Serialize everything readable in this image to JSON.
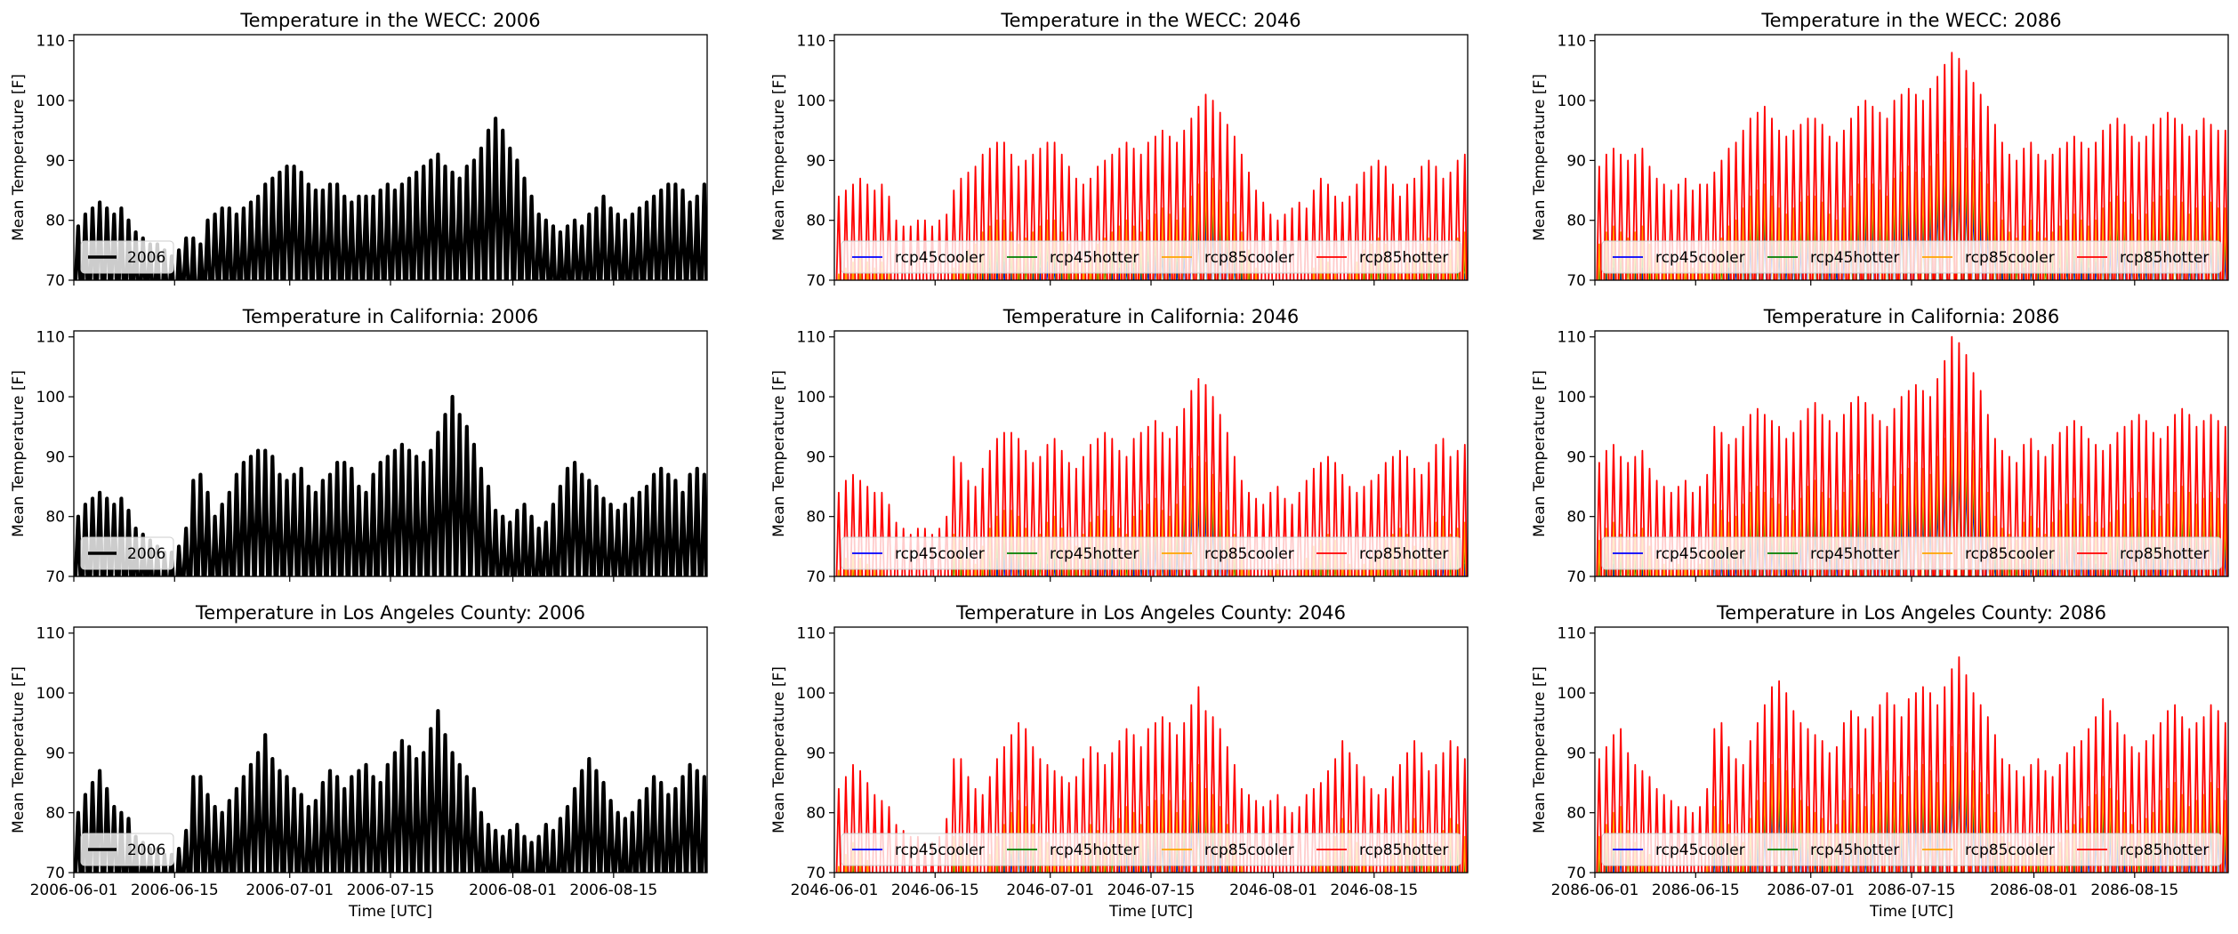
{
  "figure": {
    "ylabel": "Mean Temperature [F]",
    "xlabel": "Time [UTC]",
    "y_ticks": [
      70,
      80,
      90,
      100,
      110
    ],
    "x_ticks": [
      "06-01",
      "06-15",
      "07-01",
      "07-15",
      "08-01",
      "08-15"
    ],
    "legend_2006_label": "2006",
    "colors": {
      "2006": "#000000",
      "rcp45cooler": "#0000ff",
      "rcp45hotter": "#008000",
      "rcp85cooler": "#ffa500",
      "rcp85hotter": "#ff0000"
    }
  },
  "chart_data": [
    {
      "type": "line",
      "title": "Temperature in the WECC: 2006",
      "region": "WECC",
      "year": 2006,
      "ylabel": "Mean Temperature [F]",
      "xlabel": "",
      "ylim": [
        70,
        111
      ],
      "xlim": [
        "2006-06-01",
        "2006-08-28"
      ],
      "series": [
        {
          "name": "2006",
          "color": "#000000"
        }
      ],
      "daily_max": [
        79,
        81,
        82,
        83,
        82,
        81,
        82,
        80,
        78,
        77,
        76,
        76,
        75,
        74,
        75,
        77,
        77,
        76,
        80,
        81,
        82,
        82,
        81,
        82,
        83,
        84,
        86,
        87,
        88,
        89,
        89,
        88,
        86,
        85,
        85,
        86,
        86,
        84,
        83,
        84,
        84,
        84,
        85,
        86,
        85,
        86,
        87,
        88,
        89,
        90,
        91,
        89,
        88,
        87,
        89,
        90,
        92,
        95,
        97,
        95,
        92,
        90,
        87,
        84,
        81,
        80,
        79,
        78,
        79,
        80,
        79,
        81,
        82,
        84,
        82,
        81,
        80,
        81,
        82,
        83,
        84,
        85,
        86,
        86,
        85,
        83,
        84,
        86
      ],
      "legend_position": "lower left"
    },
    {
      "type": "line",
      "title": "Temperature in the WECC: 2046",
      "region": "WECC",
      "year": 2046,
      "ylabel": "Mean Temperature [F]",
      "xlabel": "",
      "ylim": [
        70,
        111
      ],
      "xlim": [
        "2046-06-01",
        "2046-08-28"
      ],
      "series": [
        {
          "name": "rcp45cooler",
          "color": "#0000ff"
        },
        {
          "name": "rcp45hotter",
          "color": "#008000"
        },
        {
          "name": "rcp85cooler",
          "color": "#ffa500"
        },
        {
          "name": "rcp85hotter",
          "color": "#ff0000"
        }
      ],
      "hotter_daily_max": [
        84,
        85,
        86,
        87,
        86,
        85,
        86,
        84,
        80,
        79,
        79,
        80,
        80,
        79,
        80,
        81,
        85,
        87,
        88,
        89,
        91,
        92,
        93,
        93,
        91,
        89,
        90,
        91,
        92,
        93,
        93,
        91,
        89,
        87,
        86,
        87,
        89,
        90,
        91,
        92,
        93,
        92,
        91,
        93,
        94,
        95,
        94,
        93,
        95,
        97,
        99,
        101,
        100,
        98,
        96,
        94,
        91,
        88,
        85,
        83,
        81,
        80,
        81,
        82,
        83,
        82,
        85,
        87,
        86,
        84,
        83,
        84,
        86,
        88,
        89,
        90,
        89,
        86,
        84,
        86,
        87,
        89,
        90,
        89,
        87,
        88,
        90,
        91
      ],
      "legend_position": "lower center"
    },
    {
      "type": "line",
      "title": "Temperature in the WECC: 2086",
      "region": "WECC",
      "year": 2086,
      "ylabel": "Mean Temperature [F]",
      "xlabel": "",
      "ylim": [
        70,
        111
      ],
      "xlim": [
        "2086-06-01",
        "2086-08-28"
      ],
      "series": [
        {
          "name": "rcp45cooler",
          "color": "#0000ff"
        },
        {
          "name": "rcp45hotter",
          "color": "#008000"
        },
        {
          "name": "rcp85cooler",
          "color": "#ffa500"
        },
        {
          "name": "rcp85hotter",
          "color": "#ff0000"
        }
      ],
      "hotter_daily_max": [
        89,
        91,
        92,
        91,
        90,
        91,
        92,
        89,
        87,
        86,
        85,
        86,
        87,
        85,
        86,
        86,
        88,
        90,
        92,
        93,
        95,
        97,
        98,
        99,
        97,
        95,
        94,
        95,
        96,
        97,
        97,
        96,
        94,
        93,
        95,
        97,
        99,
        100,
        99,
        98,
        97,
        100,
        101,
        102,
        101,
        100,
        102,
        104,
        106,
        108,
        107,
        105,
        103,
        101,
        99,
        96,
        93,
        91,
        90,
        92,
        93,
        91,
        90,
        91,
        92,
        93,
        94,
        93,
        92,
        93,
        95,
        96,
        97,
        96,
        94,
        93,
        94,
        96,
        97,
        98,
        97,
        96,
        94,
        95,
        97,
        96,
        95,
        95
      ],
      "legend_position": "lower center"
    },
    {
      "type": "line",
      "title": "Temperature in California: 2006",
      "region": "California",
      "year": 2006,
      "ylabel": "Mean Temperature [F]",
      "xlabel": "",
      "ylim": [
        70,
        111
      ],
      "xlim": [
        "2006-06-01",
        "2006-08-28"
      ],
      "series": [
        {
          "name": "2006",
          "color": "#000000"
        }
      ],
      "daily_max": [
        80,
        82,
        83,
        84,
        83,
        82,
        83,
        81,
        78,
        77,
        76,
        75,
        74,
        74,
        75,
        78,
        86,
        87,
        84,
        80,
        82,
        84,
        87,
        89,
        90,
        91,
        91,
        90,
        87,
        86,
        87,
        88,
        85,
        84,
        86,
        87,
        89,
        89,
        88,
        85,
        84,
        87,
        89,
        90,
        91,
        92,
        91,
        90,
        89,
        91,
        94,
        97,
        100,
        97,
        95,
        92,
        88,
        85,
        81,
        80,
        79,
        81,
        82,
        80,
        78,
        79,
        82,
        85,
        88,
        89,
        87,
        86,
        85,
        83,
        82,
        81,
        82,
        83,
        84,
        85,
        87,
        88,
        87,
        86,
        84,
        87,
        88,
        87
      ],
      "legend_position": "lower left"
    },
    {
      "type": "line",
      "title": "Temperature in California: 2046",
      "region": "California",
      "year": 2046,
      "ylabel": "Mean Temperature [F]",
      "xlabel": "",
      "ylim": [
        70,
        111
      ],
      "xlim": [
        "2046-06-01",
        "2046-08-28"
      ],
      "series": [
        {
          "name": "rcp45cooler",
          "color": "#0000ff"
        },
        {
          "name": "rcp45hotter",
          "color": "#008000"
        },
        {
          "name": "rcp85cooler",
          "color": "#ffa500"
        },
        {
          "name": "rcp85hotter",
          "color": "#ff0000"
        }
      ],
      "hotter_daily_max": [
        84,
        86,
        87,
        86,
        85,
        84,
        84,
        82,
        79,
        78,
        77,
        78,
        78,
        77,
        78,
        80,
        90,
        89,
        86,
        85,
        88,
        91,
        93,
        94,
        94,
        93,
        91,
        89,
        90,
        92,
        93,
        91,
        89,
        88,
        90,
        92,
        93,
        94,
        93,
        91,
        90,
        93,
        94,
        95,
        96,
        94,
        93,
        95,
        98,
        101,
        103,
        102,
        100,
        97,
        94,
        90,
        86,
        84,
        83,
        82,
        84,
        85,
        83,
        82,
        84,
        86,
        88,
        89,
        90,
        89,
        87,
        85,
        84,
        85,
        86,
        87,
        89,
        90,
        91,
        90,
        88,
        87,
        89,
        92,
        93,
        90,
        91,
        92
      ],
      "legend_position": "lower center"
    },
    {
      "type": "line",
      "title": "Temperature in California: 2086",
      "region": "California",
      "year": 2086,
      "ylabel": "Mean Temperature [F]",
      "xlabel": "",
      "ylim": [
        70,
        111
      ],
      "xlim": [
        "2086-06-01",
        "2086-08-28"
      ],
      "series": [
        {
          "name": "rcp45cooler",
          "color": "#0000ff"
        },
        {
          "name": "rcp45hotter",
          "color": "#008000"
        },
        {
          "name": "rcp85cooler",
          "color": "#ffa500"
        },
        {
          "name": "rcp85hotter",
          "color": "#ff0000"
        }
      ],
      "hotter_daily_max": [
        89,
        91,
        92,
        90,
        89,
        90,
        91,
        88,
        86,
        85,
        84,
        85,
        86,
        84,
        85,
        87,
        95,
        94,
        92,
        93,
        95,
        97,
        98,
        97,
        96,
        95,
        93,
        94,
        96,
        98,
        99,
        97,
        96,
        94,
        97,
        99,
        100,
        99,
        97,
        96,
        95,
        98,
        100,
        101,
        102,
        101,
        100,
        103,
        106,
        110,
        109,
        107,
        104,
        101,
        97,
        93,
        91,
        90,
        89,
        92,
        93,
        91,
        90,
        92,
        94,
        95,
        96,
        95,
        93,
        92,
        91,
        92,
        94,
        95,
        96,
        97,
        96,
        94,
        93,
        95,
        97,
        98,
        97,
        95,
        96,
        97,
        96,
        95
      ],
      "legend_position": "lower center"
    },
    {
      "type": "line",
      "title": "Temperature in Los Angeles County: 2006",
      "region": "Los Angeles County",
      "year": 2006,
      "ylabel": "Mean Temperature [F]",
      "xlabel": "Time [UTC]",
      "ylim": [
        70,
        111
      ],
      "xlim": [
        "2006-06-01",
        "2006-08-28"
      ],
      "series": [
        {
          "name": "2006",
          "color": "#000000"
        }
      ],
      "daily_max": [
        80,
        83,
        85,
        87,
        84,
        81,
        80,
        79,
        76,
        75,
        74,
        74,
        73,
        73,
        74,
        77,
        86,
        86,
        83,
        81,
        80,
        82,
        84,
        86,
        88,
        90,
        93,
        89,
        87,
        86,
        84,
        83,
        81,
        82,
        85,
        87,
        86,
        84,
        86,
        87,
        88,
        86,
        85,
        88,
        90,
        92,
        91,
        89,
        90,
        94,
        97,
        93,
        90,
        88,
        86,
        84,
        80,
        78,
        77,
        76,
        77,
        78,
        76,
        75,
        76,
        78,
        77,
        79,
        81,
        84,
        87,
        89,
        87,
        85,
        82,
        80,
        79,
        80,
        82,
        84,
        86,
        85,
        83,
        84,
        86,
        88,
        87,
        86
      ],
      "legend_position": "lower left"
    },
    {
      "type": "line",
      "title": "Temperature in Los Angeles County: 2046",
      "region": "Los Angeles County",
      "year": 2046,
      "ylabel": "Mean Temperature [F]",
      "xlabel": "Time [UTC]",
      "ylim": [
        70,
        111
      ],
      "xlim": [
        "2046-06-01",
        "2046-08-28"
      ],
      "series": [
        {
          "name": "rcp45cooler",
          "color": "#0000ff"
        },
        {
          "name": "rcp45hotter",
          "color": "#008000"
        },
        {
          "name": "rcp85cooler",
          "color": "#ffa500"
        },
        {
          "name": "rcp85hotter",
          "color": "#ff0000"
        }
      ],
      "hotter_daily_max": [
        84,
        86,
        88,
        87,
        85,
        83,
        82,
        81,
        78,
        77,
        76,
        76,
        75,
        75,
        76,
        79,
        89,
        89,
        86,
        84,
        83,
        86,
        89,
        91,
        93,
        95,
        94,
        91,
        89,
        88,
        87,
        86,
        85,
        86,
        89,
        91,
        90,
        88,
        90,
        92,
        94,
        93,
        91,
        94,
        95,
        96,
        95,
        93,
        95,
        98,
        101,
        97,
        96,
        94,
        91,
        88,
        84,
        83,
        82,
        81,
        82,
        83,
        81,
        80,
        81,
        83,
        84,
        85,
        87,
        89,
        92,
        90,
        88,
        86,
        84,
        83,
        84,
        86,
        88,
        90,
        92,
        90,
        87,
        88,
        90,
        92,
        91,
        89
      ],
      "legend_position": "lower center"
    },
    {
      "type": "line",
      "title": "Temperature in Los Angeles County: 2086",
      "region": "Los Angeles County",
      "year": 2086,
      "ylabel": "Mean Temperature [F]",
      "xlabel": "Time [UTC]",
      "ylim": [
        70,
        111
      ],
      "xlim": [
        "2086-06-01",
        "2086-08-28"
      ],
      "series": [
        {
          "name": "rcp45cooler",
          "color": "#0000ff"
        },
        {
          "name": "rcp45hotter",
          "color": "#008000"
        },
        {
          "name": "rcp85cooler",
          "color": "#ffa500"
        },
        {
          "name": "rcp85hotter",
          "color": "#ff0000"
        }
      ],
      "hotter_daily_max": [
        89,
        91,
        93,
        94,
        90,
        88,
        87,
        86,
        84,
        83,
        82,
        81,
        81,
        80,
        81,
        84,
        94,
        95,
        91,
        89,
        88,
        92,
        95,
        98,
        101,
        102,
        100,
        97,
        95,
        94,
        93,
        92,
        90,
        91,
        95,
        97,
        96,
        94,
        96,
        98,
        100,
        98,
        96,
        99,
        100,
        101,
        100,
        98,
        101,
        104,
        106,
        103,
        100,
        98,
        96,
        93,
        89,
        88,
        87,
        86,
        88,
        89,
        87,
        86,
        88,
        90,
        91,
        92,
        94,
        96,
        99,
        97,
        95,
        93,
        91,
        90,
        92,
        93,
        95,
        97,
        98,
        96,
        94,
        95,
        96,
        98,
        97,
        95
      ],
      "legend_position": "lower center"
    }
  ]
}
